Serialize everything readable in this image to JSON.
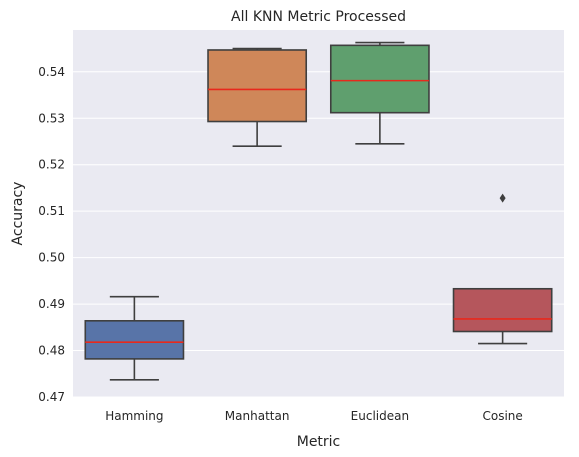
{
  "chart_data": {
    "type": "box",
    "title": "All KNN Metric Processed",
    "xlabel": "Metric",
    "ylabel": "Accuracy",
    "ylim": [
      0.47,
      0.549
    ],
    "yticks": [
      "0.47",
      "0.48",
      "0.49",
      "0.50",
      "0.51",
      "0.52",
      "0.53",
      "0.54"
    ],
    "grid": true,
    "background": "#eaeaf2",
    "grid_color": "#ffffff",
    "median_color": "#e8291c",
    "edge_color": "#3f3f3f",
    "categories": [
      "Hamming",
      "Manhattan",
      "Euclidean",
      "Cosine"
    ],
    "boxes": [
      {
        "category": "Hamming",
        "whisker_low": 0.4737,
        "q1": 0.4782,
        "median": 0.4818,
        "q3": 0.4864,
        "whisker_high": 0.4916,
        "outliers": [],
        "color": "#5874a8"
      },
      {
        "category": "Manhattan",
        "whisker_low": 0.524,
        "q1": 0.5293,
        "median": 0.5362,
        "q3": 0.5447,
        "whisker_high": 0.545,
        "outliers": [],
        "color": "#cf8759"
      },
      {
        "category": "Euclidean",
        "whisker_low": 0.5245,
        "q1": 0.5312,
        "median": 0.5381,
        "q3": 0.5457,
        "whisker_high": 0.5463,
        "outliers": [],
        "color": "#5f9f6e"
      },
      {
        "category": "Cosine",
        "whisker_low": 0.4815,
        "q1": 0.4841,
        "median": 0.4868,
        "q3": 0.4933,
        "whisker_high": 0.4933,
        "outliers": [
          0.5128
        ],
        "color": "#b5565c"
      }
    ]
  }
}
